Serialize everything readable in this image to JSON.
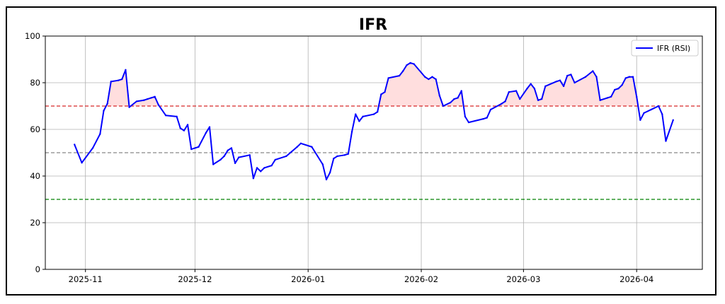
{
  "chart_data": {
    "type": "line",
    "title": "IFR",
    "xlabel": "",
    "ylabel": "",
    "ylim": [
      0,
      100
    ],
    "yticks": [
      0,
      20,
      40,
      60,
      80,
      100
    ],
    "xlim": [
      "2025-10-21",
      "2026-04-19"
    ],
    "xticks": [
      "2025-11-01",
      "2025-12-01",
      "2026-01-01",
      "2026-02-01",
      "2026-03-01",
      "2026-04-01"
    ],
    "xtick_labels": [
      "2025-11",
      "2025-12",
      "2026-01",
      "2026-02",
      "2026-03",
      "2026-04"
    ],
    "grid": true,
    "legend_position": "top-right",
    "reference_lines": [
      {
        "y": 70,
        "color": "#d62728",
        "style": "dashed"
      },
      {
        "y": 50,
        "color": "#888888",
        "style": "dashed"
      },
      {
        "y": 30,
        "color": "#008000",
        "style": "dashed"
      }
    ],
    "fill_above": {
      "threshold": 70,
      "color": "#ffdede"
    },
    "series": [
      {
        "name": "IFR (RSI)",
        "color": "#0000ff",
        "points": [
          [
            "2025-10-29",
            53.5
          ],
          [
            "2025-10-31",
            45.7
          ],
          [
            "2025-11-03",
            52.0
          ],
          [
            "2025-11-05",
            58.0
          ],
          [
            "2025-11-06",
            68.0
          ],
          [
            "2025-11-07",
            71.0
          ],
          [
            "2025-11-08",
            80.5
          ],
          [
            "2025-11-10",
            81.0
          ],
          [
            "2025-11-11",
            81.5
          ],
          [
            "2025-11-12",
            85.5
          ],
          [
            "2025-11-13",
            69.5
          ],
          [
            "2025-11-15",
            72.0
          ],
          [
            "2025-11-17",
            72.5
          ],
          [
            "2025-11-18",
            73.0
          ],
          [
            "2025-11-19",
            73.5
          ],
          [
            "2025-11-20",
            74.0
          ],
          [
            "2025-11-21",
            70.5
          ],
          [
            "2025-11-23",
            66.0
          ],
          [
            "2025-11-26",
            65.5
          ],
          [
            "2025-11-27",
            60.5
          ],
          [
            "2025-11-28",
            59.5
          ],
          [
            "2025-11-29",
            62.0
          ],
          [
            "2025-11-30",
            51.5
          ],
          [
            "2025-12-01",
            52.0
          ],
          [
            "2025-12-02",
            52.5
          ],
          [
            "2025-12-04",
            58.5
          ],
          [
            "2025-12-05",
            61.0
          ],
          [
            "2025-12-06",
            45.0
          ],
          [
            "2025-12-08",
            47.0
          ],
          [
            "2025-12-09",
            48.5
          ],
          [
            "2025-12-10",
            51.0
          ],
          [
            "2025-12-11",
            52.0
          ],
          [
            "2025-12-12",
            45.5
          ],
          [
            "2025-12-13",
            48.0
          ],
          [
            "2025-12-16",
            49.0
          ],
          [
            "2025-12-17",
            39.0
          ],
          [
            "2025-12-18",
            43.5
          ],
          [
            "2025-12-19",
            42.0
          ],
          [
            "2025-12-20",
            43.5
          ],
          [
            "2025-12-22",
            44.5
          ],
          [
            "2025-12-23",
            47.0
          ],
          [
            "2025-12-26",
            48.5
          ],
          [
            "2025-12-29",
            52.5
          ],
          [
            "2025-12-30",
            54.0
          ],
          [
            "2026-01-02",
            52.5
          ],
          [
            "2026-01-05",
            45.0
          ],
          [
            "2026-01-06",
            38.5
          ],
          [
            "2026-01-07",
            41.5
          ],
          [
            "2026-01-08",
            47.5
          ],
          [
            "2026-01-09",
            48.5
          ],
          [
            "2026-01-11",
            49.0
          ],
          [
            "2026-01-12",
            49.5
          ],
          [
            "2026-01-13",
            59.0
          ],
          [
            "2026-01-14",
            66.5
          ],
          [
            "2026-01-15",
            63.5
          ],
          [
            "2026-01-16",
            65.5
          ],
          [
            "2026-01-19",
            66.5
          ],
          [
            "2026-01-20",
            67.5
          ],
          [
            "2026-01-21",
            75.0
          ],
          [
            "2026-01-22",
            76.0
          ],
          [
            "2026-01-23",
            82.0
          ],
          [
            "2026-01-26",
            83.0
          ],
          [
            "2026-01-27",
            85.0
          ],
          [
            "2026-01-28",
            87.5
          ],
          [
            "2026-01-29",
            88.5
          ],
          [
            "2026-01-30",
            88.0
          ],
          [
            "2026-02-02",
            82.5
          ],
          [
            "2026-02-03",
            81.5
          ],
          [
            "2026-02-04",
            82.5
          ],
          [
            "2026-02-05",
            81.5
          ],
          [
            "2026-02-06",
            74.5
          ],
          [
            "2026-02-07",
            70.0
          ],
          [
            "2026-02-09",
            71.5
          ],
          [
            "2026-02-10",
            73.0
          ],
          [
            "2026-02-11",
            73.5
          ],
          [
            "2026-02-12",
            76.5
          ],
          [
            "2026-02-13",
            65.5
          ],
          [
            "2026-02-14",
            63.0
          ],
          [
            "2026-02-18",
            64.5
          ],
          [
            "2026-02-19",
            65.0
          ],
          [
            "2026-02-20",
            68.5
          ],
          [
            "2026-02-23",
            71.0
          ],
          [
            "2026-02-24",
            72.0
          ],
          [
            "2026-02-25",
            76.0
          ],
          [
            "2026-02-27",
            76.5
          ],
          [
            "2026-02-28",
            73.0
          ],
          [
            "2026-03-02",
            77.5
          ],
          [
            "2026-03-03",
            79.5
          ],
          [
            "2026-03-04",
            77.5
          ],
          [
            "2026-03-05",
            72.5
          ],
          [
            "2026-03-06",
            73.0
          ],
          [
            "2026-03-07",
            78.5
          ],
          [
            "2026-03-10",
            80.5
          ],
          [
            "2026-03-11",
            81.0
          ],
          [
            "2026-03-12",
            78.5
          ],
          [
            "2026-03-13",
            83.0
          ],
          [
            "2026-03-14",
            83.5
          ],
          [
            "2026-03-15",
            80.0
          ],
          [
            "2026-03-18",
            82.5
          ],
          [
            "2026-03-20",
            85.0
          ],
          [
            "2026-03-21",
            82.5
          ],
          [
            "2026-03-22",
            72.5
          ],
          [
            "2026-03-24",
            73.5
          ],
          [
            "2026-03-25",
            74.0
          ],
          [
            "2026-03-26",
            77.0
          ],
          [
            "2026-03-27",
            77.5
          ],
          [
            "2026-03-28",
            79.0
          ],
          [
            "2026-03-29",
            82.0
          ],
          [
            "2026-03-30",
            82.5
          ],
          [
            "2026-03-31",
            82.5
          ],
          [
            "2026-04-01",
            74.0
          ],
          [
            "2026-04-02",
            64.0
          ],
          [
            "2026-04-03",
            67.0
          ],
          [
            "2026-04-05",
            68.5
          ],
          [
            "2026-04-07",
            70.0
          ],
          [
            "2026-04-08",
            66.5
          ],
          [
            "2026-04-09",
            55.0
          ],
          [
            "2026-04-11",
            64.0
          ]
        ]
      }
    ]
  }
}
